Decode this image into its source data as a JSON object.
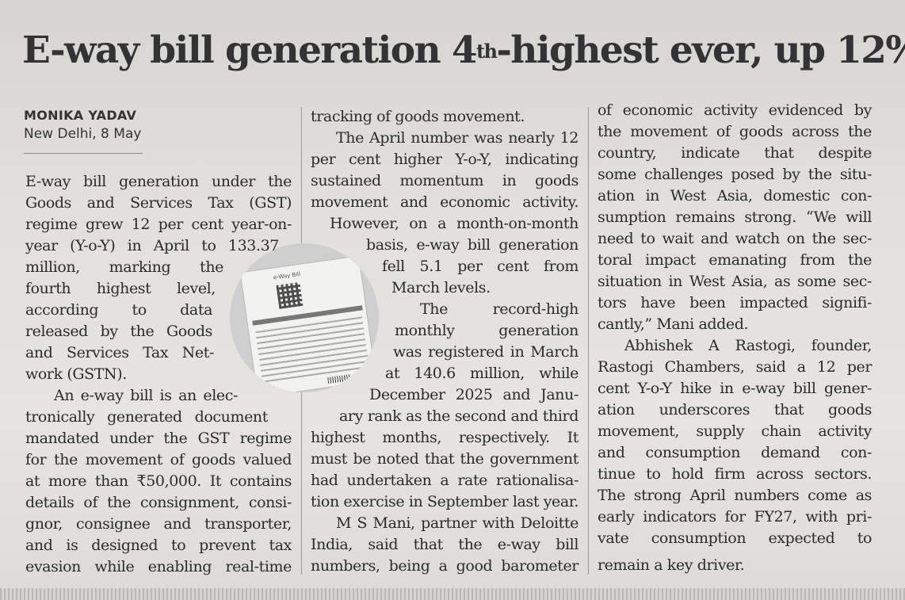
{
  "headline": {
    "main": "E-way bill generation 4",
    "superscript": "th",
    "rest": "-highest ever, up 12%"
  },
  "byline": {
    "author": "MONIKA YADAV",
    "dateline": "New Delhi, 8 May"
  },
  "photo": {
    "label": "e-Way Bill"
  },
  "column1": [
    "E-way bill generation under the",
    "Goods and Services Tax (GST)",
    "regime grew 12 per cent year-on-",
    "year (Y-o-Y) in April to 133.37",
    "million,   marking   the",
    "fourth   highest   level,",
    "according    to    data",
    "released by the Goods",
    "and Services Tax Net-",
    "work (GSTN).",
    "An e-way bill is an elec-",
    "tronically generated document",
    "mandated under the GST regime",
    "for the movement of goods valued",
    "at more than ₹50,000. It contains",
    "details of the consignment, consi-",
    "gnor, consignee and transporter,",
    "and is designed to prevent tax",
    "evasion while enabling real-time"
  ],
  "column2": [
    "tracking of goods movement.",
    "The April number was nearly 12",
    "per cent higher Y-o-Y, indicating",
    "sustained momentum in goods",
    "movement and economic activity.",
    "However, on a month-on-month",
    "basis, e-way bill generation",
    "fell 5.1 per cent from",
    "March levels.",
    "The record-high",
    "monthly generation",
    "was registered in March",
    "at 140.6 million, while",
    "December 2025 and Janu-",
    "ary rank as the second and third",
    "highest months, respectively. It",
    "must be noted that the government",
    "had undertaken a rate rationalisa-",
    "tion exercise in September last year.",
    "M S Mani, partner with Deloitte",
    "India, said that the e-way bill",
    "numbers, being a good barometer"
  ],
  "column3": [
    "of economic activity evidenced by",
    "the movement of goods across the",
    "country, indicate that despite",
    "some challenges posed by the situ-",
    "ation in West Asia, domestic con-",
    "sumption remains strong. “We will",
    "need to wait and watch on the sec-",
    "toral impact emanating from the",
    "situation in West Asia, as some sec-",
    "tors have been impacted signifi-",
    "cantly,” Mani added.",
    "Abhishek A Rastogi, founder,",
    "Rastogi Chambers, said a 12 per",
    "cent Y-o-Y hike in e-way bill gener-",
    "ation underscores that goods",
    "movement, supply chain activity",
    "and consumption demand con-",
    "tinue to hold firm across sectors.",
    "The strong April numbers come as",
    "early indicators for FY27, with pri-",
    "vate consumption expected to",
    "remain a key driver."
  ]
}
